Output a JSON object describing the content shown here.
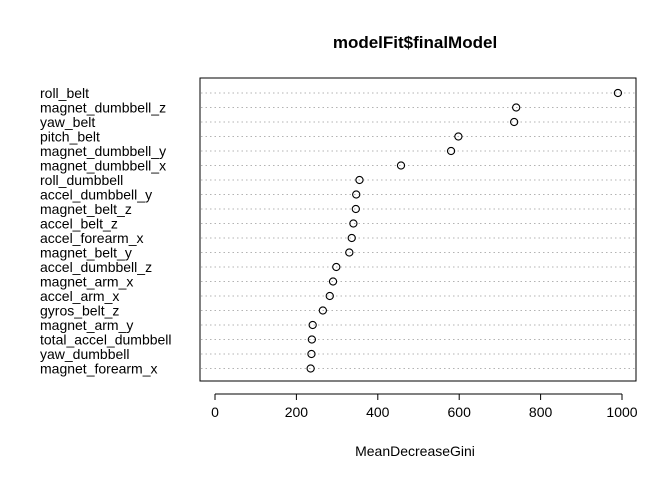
{
  "chart_data": {
    "type": "scatter",
    "variant": "dotchart",
    "title": "modelFit$finalModel",
    "xlabel": "MeanDecreaseGini",
    "ylabel": "",
    "xlim": [
      -40,
      1000
    ],
    "x_ticks": [
      0,
      200,
      400,
      600,
      800,
      1000
    ],
    "grid": "dotted horizontal guides per row",
    "point_style": "open circle",
    "series": [
      {
        "categories": [
          "roll_belt",
          "magnet_dumbbell_z",
          "yaw_belt",
          "pitch_belt",
          "magnet_dumbbell_y",
          "magnet_dumbbell_x",
          "roll_dumbbell",
          "accel_dumbbell_y",
          "magnet_belt_z",
          "accel_belt_z",
          "accel_forearm_x",
          "magnet_belt_y",
          "accel_dumbbell_z",
          "magnet_arm_x",
          "accel_arm_x",
          "gyros_belt_z",
          "magnet_arm_y",
          "total_accel_dumbbell",
          "yaw_dumbbell",
          "magnet_forearm_x"
        ],
        "values": [
          990,
          740,
          735,
          598,
          580,
          457,
          355,
          347,
          346,
          340,
          336,
          330,
          298,
          290,
          282,
          265,
          240,
          238,
          237,
          235
        ]
      }
    ]
  }
}
